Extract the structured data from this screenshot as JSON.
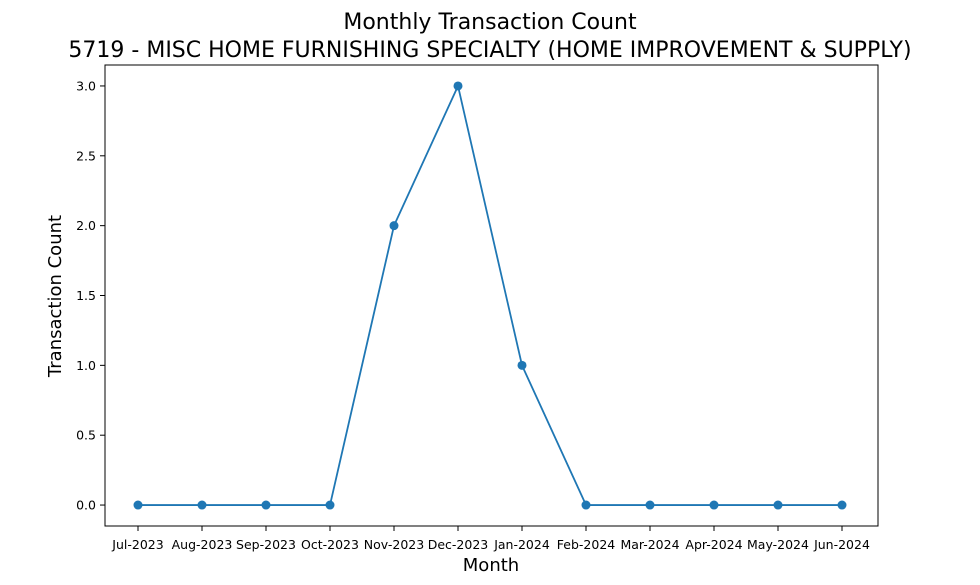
{
  "chart_data": {
    "type": "line",
    "title": "Monthly Transaction Count",
    "subtitle": "5719 - MISC HOME FURNISHING SPECIALTY (HOME IMPROVEMENT & SUPPLY)",
    "xlabel": "Month",
    "ylabel": "Transaction Count",
    "categories": [
      "Jul-2023",
      "Aug-2023",
      "Sep-2023",
      "Oct-2023",
      "Nov-2023",
      "Dec-2023",
      "Jan-2024",
      "Feb-2024",
      "Mar-2024",
      "Apr-2024",
      "May-2024",
      "Jun-2024"
    ],
    "series": [
      {
        "values": [
          0,
          0,
          0,
          0,
          2,
          3,
          1,
          0,
          0,
          0,
          0,
          0
        ],
        "color": "#1f77b4",
        "marker": "circle"
      }
    ],
    "ylim": [
      -0.15,
      3.15
    ],
    "yticks": [
      0.0,
      0.5,
      1.0,
      1.5,
      2.0,
      2.5,
      3.0
    ],
    "ytick_labels": [
      "0.0",
      "0.5",
      "1.0",
      "1.5",
      "2.0",
      "2.5",
      "3.0"
    ],
    "grid": false,
    "legend": "none"
  }
}
